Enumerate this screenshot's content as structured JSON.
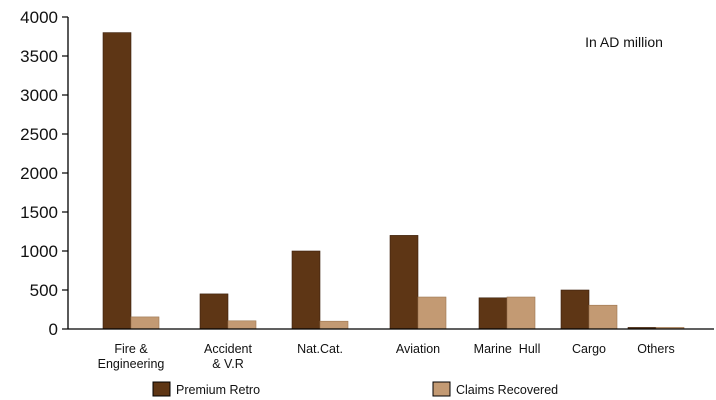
{
  "chart_data": {
    "type": "bar",
    "title": "",
    "unit_note": "In AD million",
    "xlabel": "",
    "ylabel": "",
    "ylim": [
      0,
      4000
    ],
    "yticks": [
      0,
      500,
      1000,
      1500,
      2000,
      2500,
      3000,
      3500,
      4000
    ],
    "grid": false,
    "legend_position": "bottom",
    "categories": [
      [
        "Fire &",
        "Engineering"
      ],
      [
        "Accident",
        "& V.R"
      ],
      [
        "Nat.Cat."
      ],
      [
        "Aviation"
      ],
      [
        "Marine  Hull"
      ],
      [
        "Cargo"
      ],
      [
        "Others"
      ]
    ],
    "series": [
      {
        "name": "Premium Retro",
        "color": "#5e3615",
        "values": [
          3800,
          450,
          1000,
          1200,
          400,
          500,
          20
        ]
      },
      {
        "name": "Claims Recovered",
        "color": "#c39a73",
        "values": [
          155,
          105,
          100,
          410,
          410,
          305,
          20
        ]
      }
    ]
  }
}
